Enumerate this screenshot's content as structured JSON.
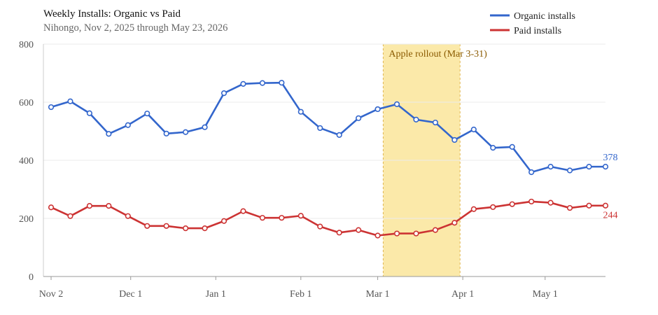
{
  "chart_data": {
    "type": "line",
    "title": "Weekly Installs: Organic vs Paid",
    "subtitle": "Nihongo, Nov 2, 2025 through May 23, 2026",
    "x_start": "2025-11-02",
    "x_end": "2026-05-23",
    "x_ticks": [
      {
        "date": "2025-11-02",
        "label": "Nov 2"
      },
      {
        "date": "2025-12-01",
        "label": "Dec 1"
      },
      {
        "date": "2026-01-01",
        "label": "Jan 1"
      },
      {
        "date": "2026-02-01",
        "label": "Feb 1"
      },
      {
        "date": "2026-03-01",
        "label": "Mar 1"
      },
      {
        "date": "2026-04-01",
        "label": "Apr 1"
      },
      {
        "date": "2026-05-01",
        "label": "May 1"
      }
    ],
    "y_ticks": [
      "0",
      "200",
      "400",
      "600",
      "800"
    ],
    "ylim": [
      0,
      800
    ],
    "grid": true,
    "legend_position": "top-right",
    "x": [
      "2025-11-02",
      "2025-11-09",
      "2025-11-16",
      "2025-11-23",
      "2025-11-30",
      "2025-12-07",
      "2025-12-14",
      "2025-12-21",
      "2025-12-28",
      "2026-01-04",
      "2026-01-11",
      "2026-01-18",
      "2026-01-25",
      "2026-02-01",
      "2026-02-08",
      "2026-02-15",
      "2026-02-22",
      "2026-03-01",
      "2026-03-08",
      "2026-03-15",
      "2026-03-22",
      "2026-03-29",
      "2026-04-05",
      "2026-04-12",
      "2026-04-19",
      "2026-04-26",
      "2026-05-03",
      "2026-05-10",
      "2026-05-17",
      "2026-05-23"
    ],
    "series": [
      {
        "name": "Organic installs",
        "color": "#3366cc",
        "values": [
          583,
          603,
          562,
          491,
          521,
          561,
          492,
          497,
          514,
          631,
          663,
          666,
          667,
          567,
          511,
          487,
          545,
          576,
          593,
          540,
          530,
          470,
          506,
          443,
          446,
          359,
          378,
          365,
          378,
          378
        ],
        "end_label": "378"
      },
      {
        "name": "Paid installs",
        "color": "#cc3333",
        "values": [
          238,
          208,
          243,
          243,
          208,
          174,
          174,
          166,
          166,
          191,
          225,
          202,
          202,
          209,
          172,
          151,
          160,
          141,
          148,
          148,
          160,
          185,
          232,
          239,
          249,
          258,
          254,
          236,
          244,
          244
        ],
        "end_label": "244"
      }
    ],
    "annotations": [
      {
        "type": "band",
        "start": "2026-03-03",
        "end": "2026-03-31",
        "label": "Apple rollout (Mar 3-31)",
        "color": "#fbe9a9",
        "edge_color": "#e0b550"
      }
    ]
  }
}
